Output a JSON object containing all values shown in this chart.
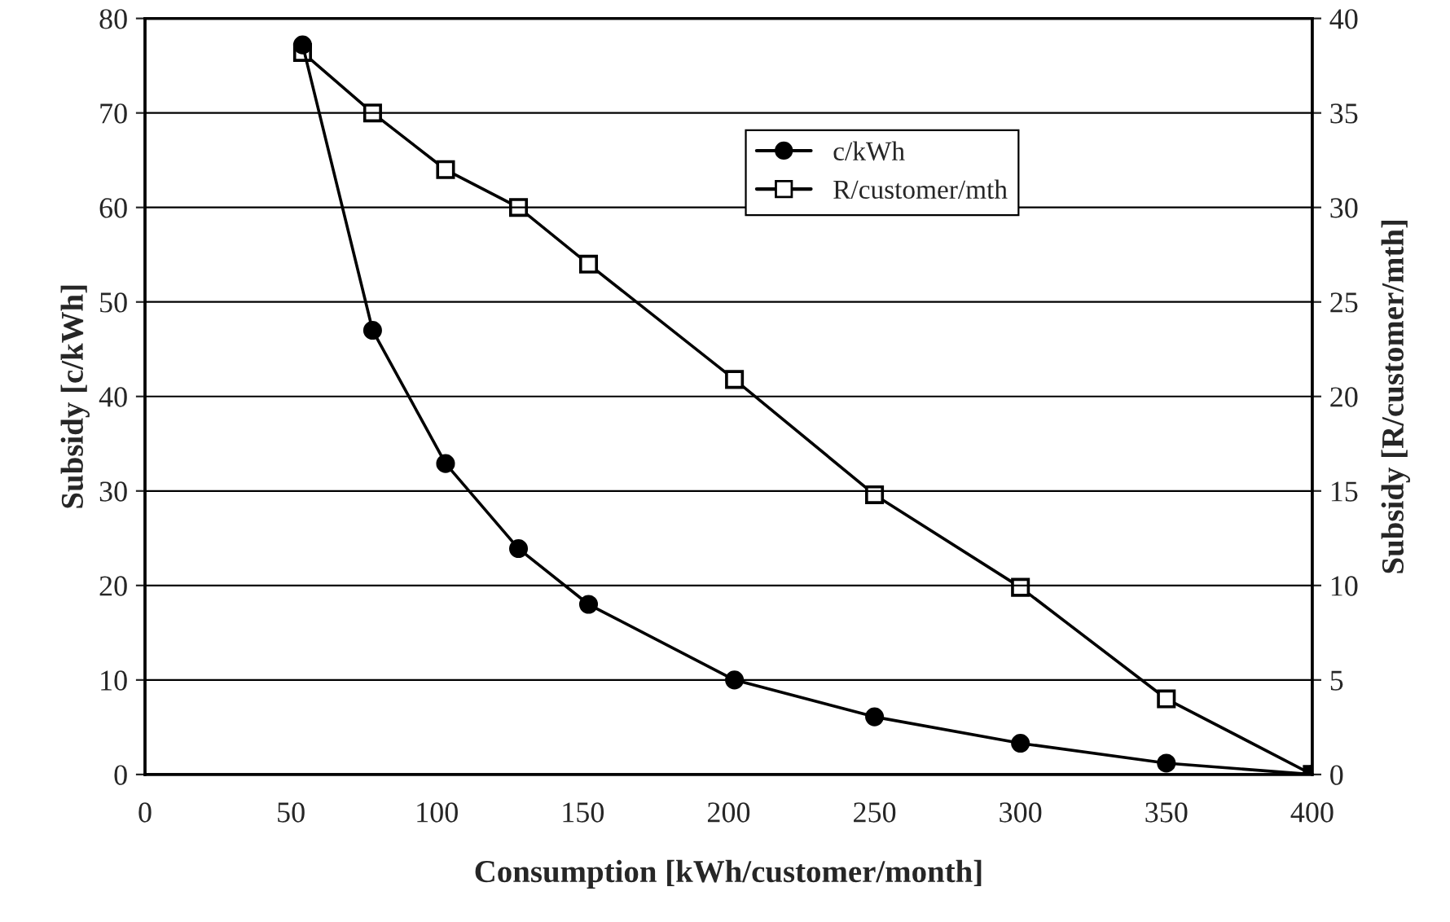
{
  "chart_data": {
    "type": "line",
    "xlabel": "Consumption [kWh/customer/month]",
    "ylabel": "Subsidy [c/kWh]",
    "y2label": "Subsidy [R/customer/mth]",
    "x": [
      54,
      78,
      103,
      128,
      152,
      202,
      250,
      300,
      350,
      400
    ],
    "series": [
      {
        "name": "c/kWh",
        "color": "#000000",
        "marker": "circle",
        "values": [
          77.2,
          47,
          32.9,
          23.9,
          18,
          10,
          6.1,
          3.3,
          1.2,
          0
        ]
      },
      {
        "name": "R/customer/mth",
        "color": "#000000",
        "marker": "square",
        "axis": "y2",
        "values": [
          38.2,
          35,
          32,
          30,
          27,
          20.9,
          14.8,
          9.9,
          4,
          0
        ]
      }
    ],
    "xlim": [
      0,
      400
    ],
    "xticks": [
      0,
      50,
      100,
      150,
      200,
      250,
      300,
      350,
      400
    ],
    "ylim": [
      0,
      80
    ],
    "yticks": [
      0,
      10,
      20,
      30,
      40,
      50,
      60,
      70,
      80
    ],
    "y2lim": [
      0,
      40
    ],
    "y2ticks": [
      0,
      5,
      10,
      15,
      20,
      25,
      30,
      35,
      40
    ],
    "grid": "y",
    "legend": "top right",
    "line_style": "solid"
  }
}
